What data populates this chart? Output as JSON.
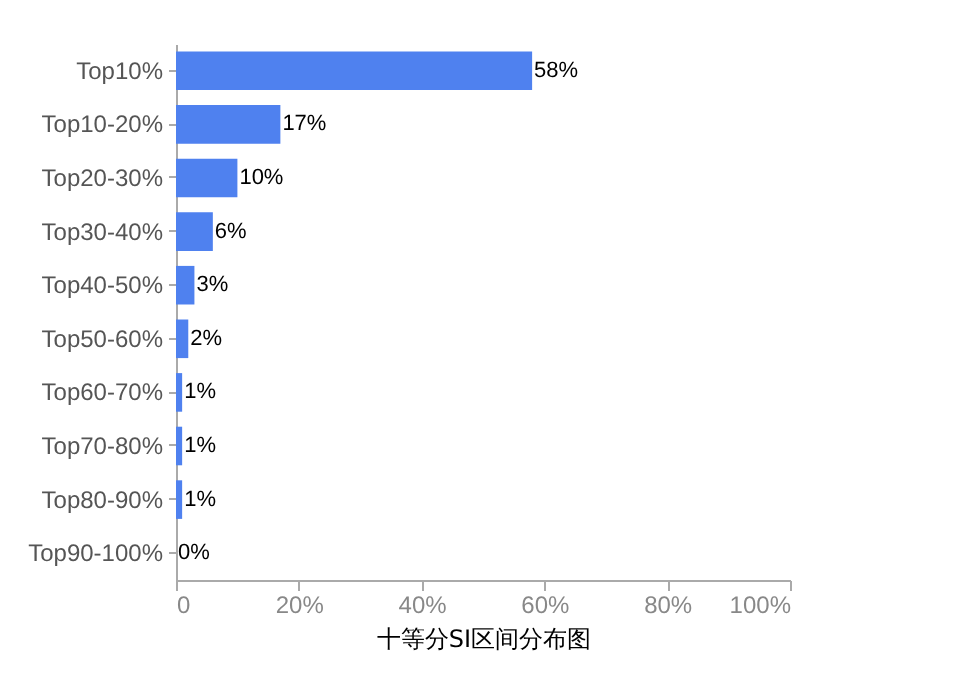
{
  "chart_data": {
    "type": "bar",
    "orientation": "horizontal",
    "xlabel": "十等分SI区间分布图",
    "categories": [
      "Top10%",
      "Top10-20%",
      "Top20-30%",
      "Top30-40%",
      "Top40-50%",
      "Top50-60%",
      "Top60-70%",
      "Top70-80%",
      "Top80-90%",
      "Top90-100%"
    ],
    "values": [
      58,
      17,
      10,
      6,
      3,
      2,
      1,
      1,
      1,
      0
    ],
    "value_labels": [
      "58%",
      "17%",
      "10%",
      "6%",
      "3%",
      "2%",
      "1%",
      "1%",
      "1%",
      "0%"
    ],
    "color": "#4f81ef",
    "xlim": [
      0,
      100
    ],
    "xticks": [
      0,
      {
        "value": 20,
        "label": "20%"
      },
      {
        "value": 40,
        "label": "40%"
      },
      {
        "value": 60,
        "label": "60%"
      },
      {
        "value": 80,
        "label": "80%"
      },
      {
        "value": 100,
        "label": "100%"
      }
    ],
    "grid": false
  }
}
